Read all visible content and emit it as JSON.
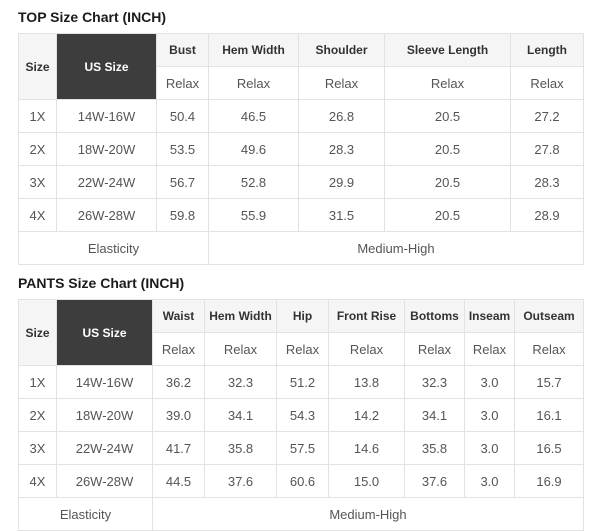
{
  "chart_data": [
    {
      "type": "table",
      "title": "TOP Size Chart (INCH)",
      "header": {
        "size_label": "Size",
        "us_size_label": "US Size",
        "fit_label": "Relax"
      },
      "columns": [
        "Bust",
        "Hem Width",
        "Shoulder",
        "Sleeve Length",
        "Length"
      ],
      "rows": [
        {
          "size": "1X",
          "us_size": "14W-16W",
          "values": [
            "50.4",
            "46.5",
            "26.8",
            "20.5",
            "27.2"
          ]
        },
        {
          "size": "2X",
          "us_size": "18W-20W",
          "values": [
            "53.5",
            "49.6",
            "28.3",
            "20.5",
            "27.8"
          ]
        },
        {
          "size": "3X",
          "us_size": "22W-24W",
          "values": [
            "56.7",
            "52.8",
            "29.9",
            "20.5",
            "28.3"
          ]
        },
        {
          "size": "4X",
          "us_size": "26W-28W",
          "values": [
            "59.8",
            "55.9",
            "31.5",
            "20.5",
            "28.9"
          ]
        }
      ],
      "footer": {
        "label": "Elasticity",
        "value": "Medium-High"
      }
    },
    {
      "type": "table",
      "title": "PANTS Size Chart (INCH)",
      "header": {
        "size_label": "Size",
        "us_size_label": "US Size",
        "fit_label": "Relax"
      },
      "columns": [
        "Waist",
        "Hem Width",
        "Hip",
        "Front Rise",
        "Bottoms",
        "Inseam",
        "Outseam"
      ],
      "rows": [
        {
          "size": "1X",
          "us_size": "14W-16W",
          "values": [
            "36.2",
            "32.3",
            "51.2",
            "13.8",
            "32.3",
            "3.0",
            "15.7"
          ]
        },
        {
          "size": "2X",
          "us_size": "18W-20W",
          "values": [
            "39.0",
            "34.1",
            "54.3",
            "14.2",
            "34.1",
            "3.0",
            "16.1"
          ]
        },
        {
          "size": "3X",
          "us_size": "22W-24W",
          "values": [
            "41.7",
            "35.8",
            "57.5",
            "14.6",
            "35.8",
            "3.0",
            "16.5"
          ]
        },
        {
          "size": "4X",
          "us_size": "26W-28W",
          "values": [
            "44.5",
            "37.6",
            "60.6",
            "15.0",
            "37.6",
            "3.0",
            "16.9"
          ]
        }
      ],
      "footer": {
        "label": "Elasticity",
        "value": "Medium-High"
      }
    }
  ],
  "colors": {
    "us_size_header_bg": "#3d3d3d",
    "us_size_header_text": "#ffffff",
    "column_header_bg": "#f5f5f5",
    "table_border": "#e2e2e2",
    "body_text": "#555555",
    "title_text": "#1b1b1b"
  }
}
